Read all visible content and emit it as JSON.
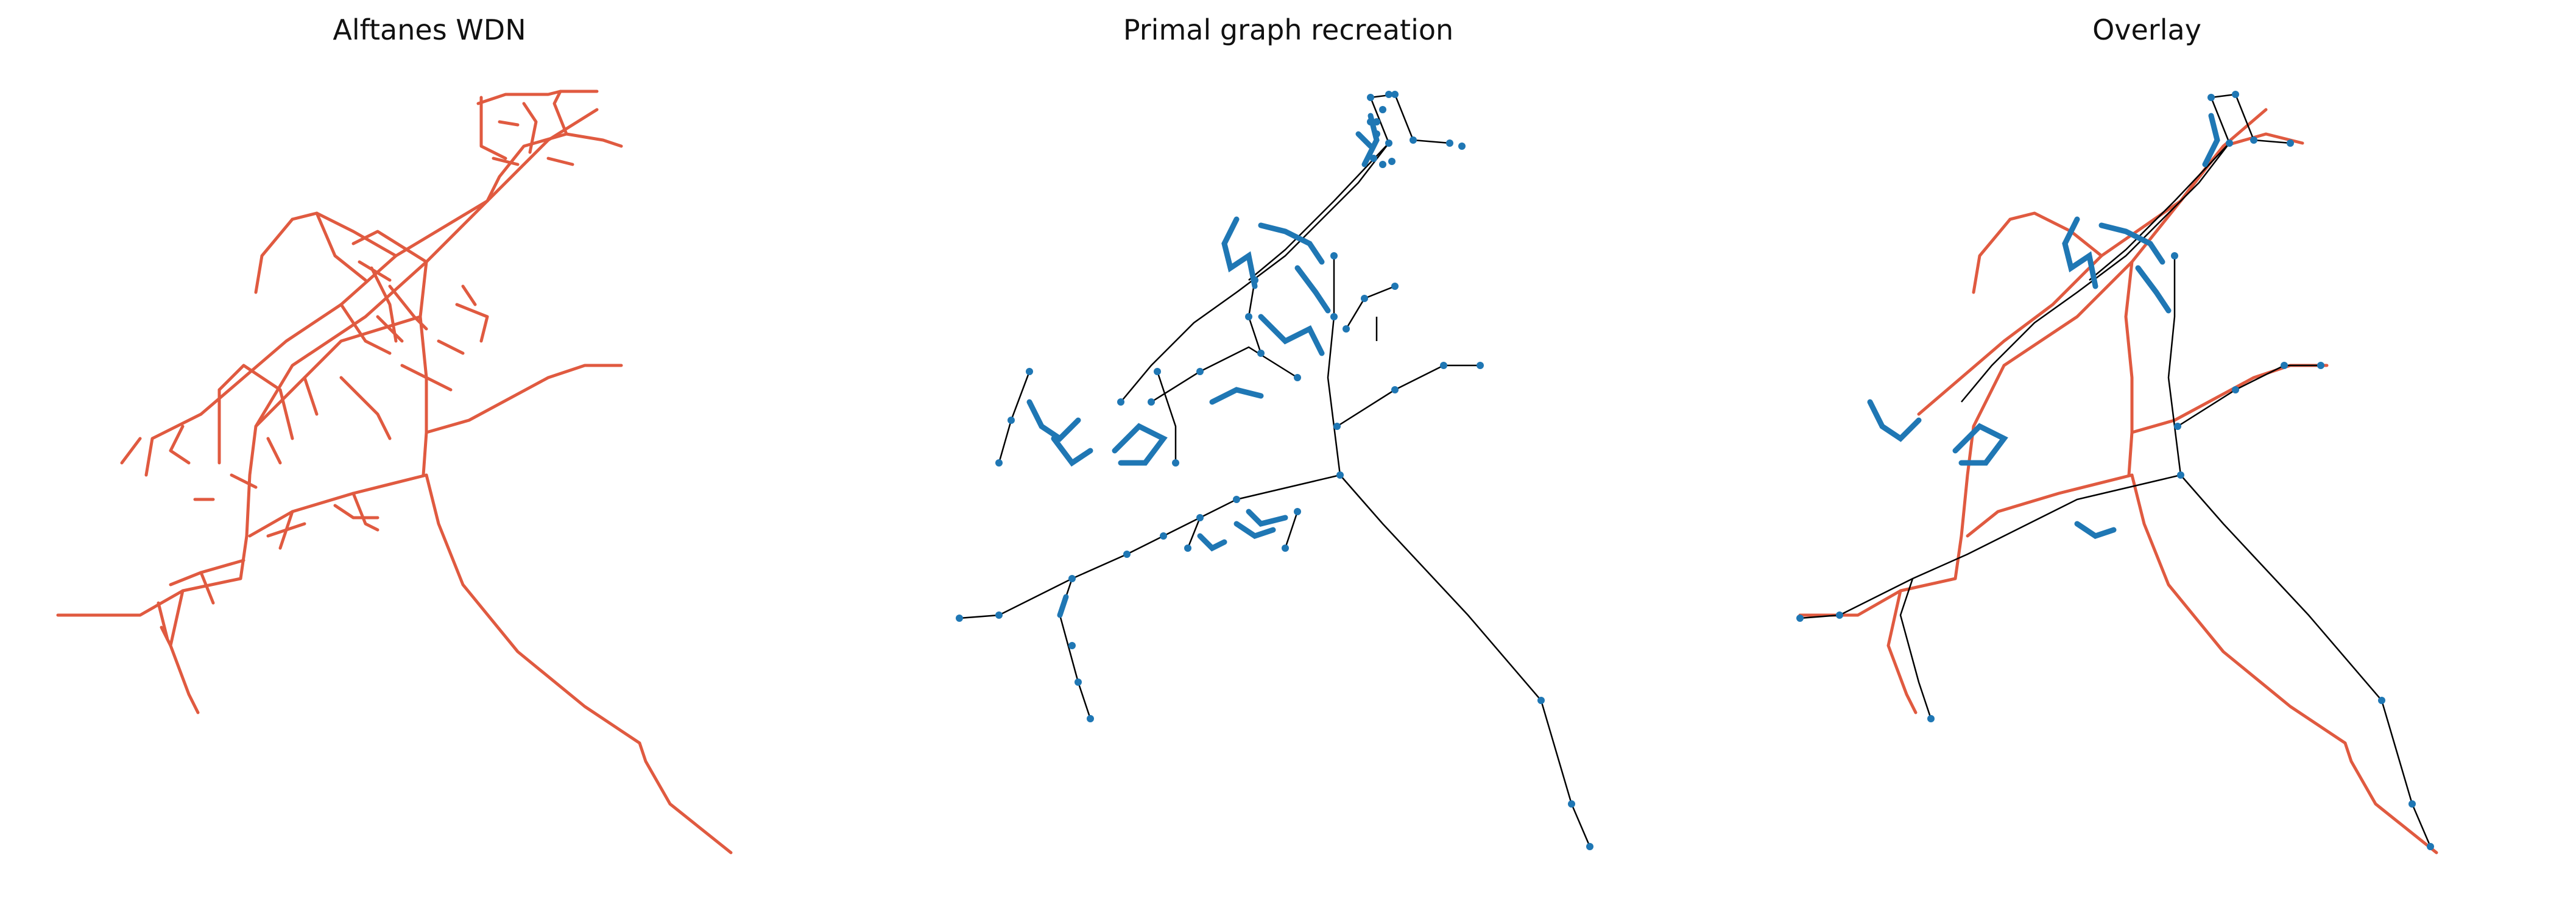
{
  "panels": [
    {
      "title": "Alftanes WDN",
      "kind": "network"
    },
    {
      "title": "Primal graph recreation",
      "kind": "graph"
    },
    {
      "title": "Overlay",
      "kind": "overlay"
    }
  ],
  "colors": {
    "network_line": "#e05a40",
    "graph_edge": "#000000",
    "graph_node": "#1f77b4"
  }
}
